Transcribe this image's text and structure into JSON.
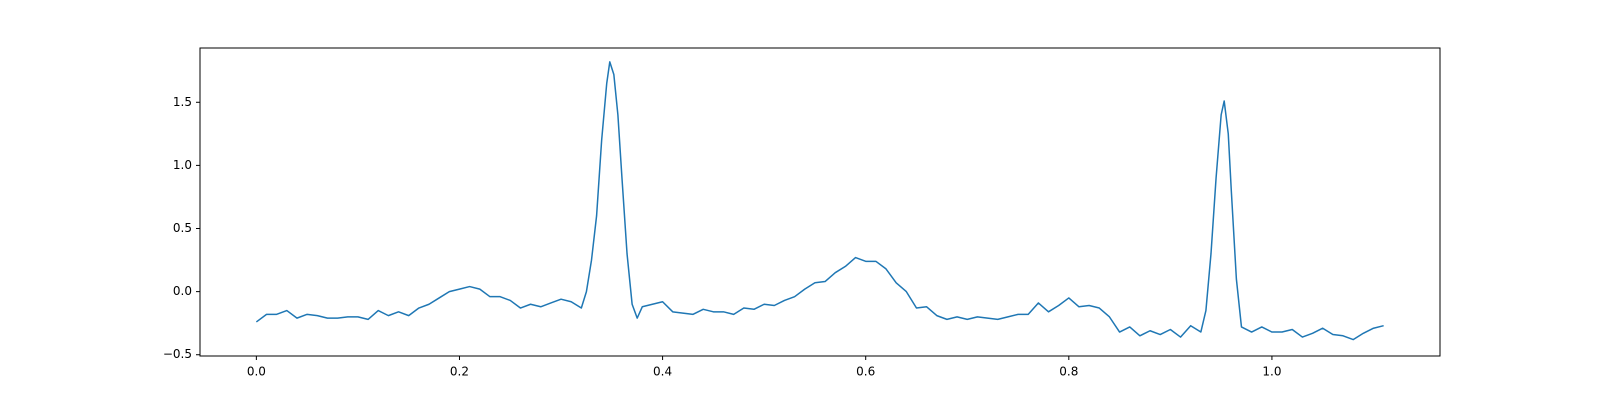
{
  "chart_data": {
    "type": "line",
    "x": [
      0,
      0.01,
      0.02,
      0.03,
      0.04,
      0.05,
      0.06,
      0.07,
      0.08,
      0.09,
      0.1,
      0.11,
      0.12,
      0.13,
      0.14,
      0.15,
      0.16,
      0.17,
      0.18,
      0.19,
      0.2,
      0.21,
      0.22,
      0.23,
      0.24,
      0.25,
      0.26,
      0.27,
      0.28,
      0.29,
      0.3,
      0.31,
      0.32,
      0.325,
      0.33,
      0.335,
      0.34,
      0.345,
      0.348,
      0.352,
      0.356,
      0.36,
      0.365,
      0.37,
      0.375,
      0.38,
      0.39,
      0.4,
      0.41,
      0.42,
      0.43,
      0.44,
      0.45,
      0.46,
      0.47,
      0.48,
      0.49,
      0.5,
      0.51,
      0.52,
      0.53,
      0.54,
      0.55,
      0.56,
      0.57,
      0.58,
      0.59,
      0.6,
      0.61,
      0.62,
      0.63,
      0.64,
      0.65,
      0.66,
      0.67,
      0.68,
      0.69,
      0.7,
      0.71,
      0.72,
      0.73,
      0.74,
      0.75,
      0.76,
      0.77,
      0.78,
      0.79,
      0.8,
      0.81,
      0.82,
      0.83,
      0.84,
      0.85,
      0.86,
      0.87,
      0.88,
      0.89,
      0.9,
      0.91,
      0.92,
      0.93,
      0.935,
      0.94,
      0.945,
      0.95,
      0.953,
      0.957,
      0.96,
      0.965,
      0.97,
      0.98,
      0.99,
      1.0,
      1.01,
      1.02,
      1.03,
      1.04,
      1.05,
      1.06,
      1.07,
      1.08,
      1.09,
      1.1,
      1.11
    ],
    "series": [
      {
        "color": "#1f77b4",
        "values": [
          -0.24,
          -0.18,
          -0.18,
          -0.15,
          -0.21,
          -0.18,
          -0.19,
          -0.21,
          -0.21,
          -0.2,
          -0.2,
          -0.22,
          -0.15,
          -0.19,
          -0.16,
          -0.19,
          -0.13,
          -0.1,
          -0.05,
          0.0,
          0.02,
          0.04,
          0.02,
          -0.04,
          -0.04,
          -0.07,
          -0.13,
          -0.1,
          -0.12,
          -0.09,
          -0.06,
          -0.08,
          -0.13,
          0.0,
          0.25,
          0.6,
          1.2,
          1.65,
          1.82,
          1.72,
          1.4,
          0.9,
          0.3,
          -0.1,
          -0.21,
          -0.12,
          -0.1,
          -0.08,
          -0.16,
          -0.17,
          -0.18,
          -0.14,
          -0.16,
          -0.16,
          -0.18,
          -0.13,
          -0.14,
          -0.1,
          -0.11,
          -0.07,
          -0.04,
          0.02,
          0.07,
          0.08,
          0.15,
          0.2,
          0.27,
          0.24,
          0.24,
          0.18,
          0.07,
          0.0,
          -0.13,
          -0.12,
          -0.19,
          -0.22,
          -0.2,
          -0.22,
          -0.2,
          -0.21,
          -0.22,
          -0.2,
          -0.18,
          -0.18,
          -0.09,
          -0.16,
          -0.11,
          -0.05,
          -0.12,
          -0.11,
          -0.13,
          -0.2,
          -0.32,
          -0.28,
          -0.35,
          -0.31,
          -0.34,
          -0.3,
          -0.36,
          -0.27,
          -0.32,
          -0.15,
          0.3,
          0.9,
          1.4,
          1.51,
          1.25,
          0.8,
          0.1,
          -0.28,
          -0.32,
          -0.28,
          -0.32,
          -0.32,
          -0.3,
          -0.36,
          -0.33,
          -0.29,
          -0.34,
          -0.35,
          -0.38,
          -0.33,
          -0.29,
          -0.27
        ]
      }
    ],
    "xlim": [
      -0.0555,
      1.1655
    ],
    "xticks": [
      {
        "value": 0,
        "label": "0.0"
      },
      0.2,
      0.4,
      0.6,
      0.8,
      {
        "value": 1,
        "label": "1.0"
      }
    ],
    "ylim": [
      -0.51,
      1.93
    ],
    "yticks": [
      {
        "value": -0.5,
        "label": "−0.5"
      },
      {
        "value": 0,
        "label": "0.0"
      },
      0.5,
      {
        "value": 1,
        "label": "1.0"
      },
      1.5
    ],
    "grid": false
  }
}
